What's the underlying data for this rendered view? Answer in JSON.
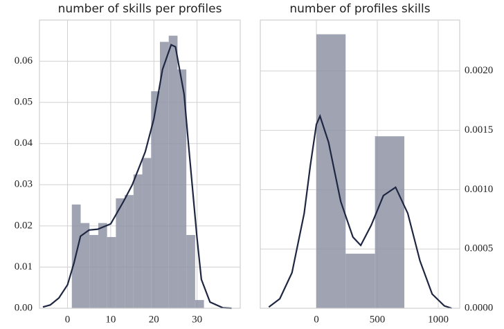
{
  "chart_data": [
    {
      "type": "histogram",
      "title": "number of skills per profiles",
      "bins": [
        1,
        3.04,
        5.08,
        7.12,
        9.16,
        11.2,
        13.24,
        15.28,
        17.32,
        19.36,
        21.4,
        23.44,
        25.48,
        27.52,
        29.56,
        31.6
      ],
      "values": [
        0.0252,
        0.0207,
        0.0178,
        0.0207,
        0.0173,
        0.0267,
        0.0275,
        0.0325,
        0.0365,
        0.0527,
        0.0647,
        0.0662,
        0.058,
        0.0178,
        0.002
      ],
      "color": "#8e93a5",
      "line": {
        "x": [
          -5.7,
          -4,
          -2,
          0,
          1.5,
          3,
          5,
          7,
          10,
          13,
          15,
          18,
          20,
          22,
          24,
          25,
          27,
          28,
          30,
          31,
          33,
          36,
          38
        ],
        "values": [
          0.0003,
          0.0008,
          0.0025,
          0.0057,
          0.011,
          0.0175,
          0.019,
          0.0192,
          0.0205,
          0.026,
          0.03,
          0.038,
          0.046,
          0.058,
          0.064,
          0.0635,
          0.052,
          0.04,
          0.017,
          0.007,
          0.0015,
          0.0001,
          0
        ],
        "color": "#1e2642"
      },
      "xlim": [
        -6.5,
        40
      ],
      "xticks": [
        0,
        10,
        20,
        30
      ],
      "ylim": [
        0,
        0.07
      ],
      "yticks": [
        {
          "value": 0,
          "label": "0.00"
        },
        0.01,
        0.02,
        0.03,
        0.04,
        0.05,
        0.06
      ],
      "grid": true,
      "y_axis": "left"
    },
    {
      "type": "histogram",
      "title": "number of profiles skills",
      "bins": [
        0,
        240,
        481,
        722
      ],
      "values": [
        0.00231,
        0.00046,
        0.00145
      ],
      "color": "#8e93a5",
      "line": {
        "x": [
          -390,
          -300,
          -200,
          -100,
          -50,
          0,
          30,
          100,
          200,
          300,
          364,
          450,
          550,
          650,
          750,
          850,
          950,
          1050,
          1110
        ],
        "values": [
          1e-05,
          8e-05,
          0.0003,
          0.0008,
          0.0012,
          0.00155,
          0.00162,
          0.0014,
          0.0009,
          0.0006,
          0.00053,
          0.0007,
          0.00095,
          0.00102,
          0.0008,
          0.0004,
          0.00012,
          2e-05,
          0
        ],
        "color": "#1e2642"
      },
      "xlim": [
        -460,
        1176
      ],
      "xticks": [
        0,
        500,
        1000
      ],
      "ylim": [
        0,
        0.00243
      ],
      "yticks": [
        {
          "value": 0,
          "label": "0.0000"
        },
        0.0005,
        {
          "value": 0.001,
          "label": "0.0010"
        },
        0.0015,
        {
          "value": 0.002,
          "label": "0.0020"
        }
      ],
      "grid": true,
      "y_axis": "right"
    }
  ]
}
